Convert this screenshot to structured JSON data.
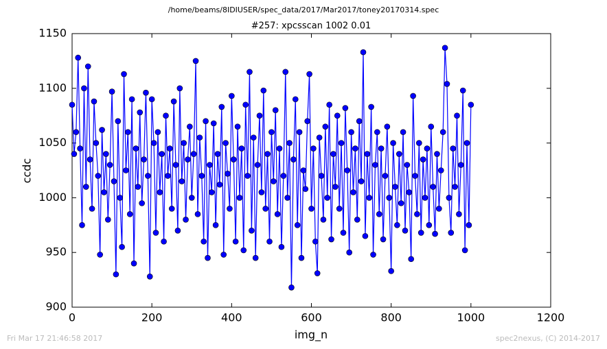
{
  "chart_data": {
    "type": "line",
    "file": "/home/beams/8IDIUSER/spec_data/2017/Mar2017/toney20170314.spec",
    "title": "#257: xpcsscan 1002 0.01",
    "xlabel": "img_n",
    "ylabel": "ccdc",
    "footer_left": "Fri Mar 17 21:46:58 2017",
    "footer_right": "spec2nexus, (C) 2014-2017",
    "color": "#0000ff",
    "xlim": [
      0,
      1200
    ],
    "xticks": [
      0,
      200,
      400,
      600,
      800,
      1000,
      1200
    ],
    "ylim": [
      900,
      1150
    ],
    "yticks": [
      900,
      950,
      1000,
      1050,
      1100,
      1150
    ],
    "x": [
      0,
      5,
      10,
      15,
      20,
      25,
      30,
      35,
      40,
      45,
      50,
      55,
      60,
      65,
      70,
      75,
      80,
      85,
      90,
      95,
      100,
      105,
      110,
      115,
      120,
      125,
      130,
      135,
      140,
      145,
      150,
      155,
      160,
      165,
      170,
      175,
      180,
      185,
      190,
      195,
      200,
      205,
      210,
      215,
      220,
      225,
      230,
      235,
      240,
      245,
      250,
      255,
      260,
      265,
      270,
      275,
      280,
      285,
      290,
      295,
      300,
      305,
      310,
      315,
      320,
      325,
      330,
      335,
      340,
      345,
      350,
      355,
      360,
      365,
      370,
      375,
      380,
      385,
      390,
      395,
      400,
      405,
      410,
      415,
      420,
      425,
      430,
      435,
      440,
      445,
      450,
      455,
      460,
      465,
      470,
      475,
      480,
      485,
      490,
      495,
      500,
      505,
      510,
      515,
      520,
      525,
      530,
      535,
      540,
      545,
      550,
      555,
      560,
      565,
      570,
      575,
      580,
      585,
      590,
      595,
      600,
      605,
      610,
      615,
      620,
      625,
      630,
      635,
      640,
      645,
      650,
      655,
      660,
      665,
      670,
      675,
      680,
      685,
      690,
      695,
      700,
      705,
      710,
      715,
      720,
      725,
      730,
      735,
      740,
      745,
      750,
      755,
      760,
      765,
      770,
      775,
      780,
      785,
      790,
      795,
      800,
      805,
      810,
      815,
      820,
      825,
      830,
      835,
      840,
      845,
      850,
      855,
      860,
      865,
      870,
      875,
      880,
      885,
      890,
      895,
      900,
      905,
      910,
      915,
      920,
      925,
      930,
      935,
      940,
      945,
      950,
      955,
      960,
      965,
      970,
      975,
      980,
      985,
      990,
      995,
      1000
    ],
    "values": [
      1085,
      1040,
      1060,
      1128,
      1045,
      975,
      1100,
      1010,
      1120,
      1035,
      990,
      1088,
      1050,
      1020,
      948,
      1062,
      1005,
      1040,
      980,
      1030,
      1097,
      1015,
      930,
      1070,
      1000,
      955,
      1113,
      1025,
      1060,
      985,
      1090,
      940,
      1045,
      1010,
      1078,
      995,
      1035,
      1096,
      1020,
      928,
      1090,
      1050,
      968,
      1060,
      1005,
      1040,
      960,
      1075,
      1020,
      1045,
      990,
      1088,
      1030,
      970,
      1100,
      1015,
      1050,
      980,
      1035,
      1065,
      1000,
      1040,
      1125,
      985,
      1055,
      1020,
      960,
      1070,
      945,
      1030,
      1005,
      1068,
      975,
      1040,
      1012,
      1083,
      948,
      1050,
      1022,
      990,
      1093,
      1035,
      960,
      1065,
      1000,
      1045,
      952,
      1085,
      1020,
      1115,
      970,
      1055,
      945,
      1030,
      1075,
      1005,
      1098,
      990,
      1040,
      960,
      1060,
      1015,
      1080,
      985,
      1045,
      955,
      1020,
      1115,
      1000,
      1050,
      918,
      1035,
      1090,
      975,
      1060,
      945,
      1025,
      1008,
      1070,
      1113,
      990,
      1045,
      960,
      931,
      1055,
      1020,
      980,
      1065,
      1000,
      1085,
      962,
      1040,
      1010,
      1075,
      990,
      1050,
      968,
      1082,
      1025,
      950,
      1060,
      1005,
      1045,
      980,
      1070,
      1015,
      1133,
      965,
      1040,
      1000,
      1083,
      948,
      1030,
      1060,
      985,
      1045,
      962,
      1020,
      1065,
      1000,
      933,
      1050,
      1010,
      975,
      1040,
      995,
      1060,
      970,
      1030,
      1005,
      944,
      1093,
      1020,
      985,
      1050,
      968,
      1035,
      1000,
      1045,
      975,
      1065,
      1010,
      967,
      1040,
      990,
      1025,
      1060,
      1137,
      1104,
      1000,
      968,
      1045,
      1010,
      1075,
      985,
      1030,
      1098,
      952,
      1050,
      975,
      1085
    ]
  }
}
